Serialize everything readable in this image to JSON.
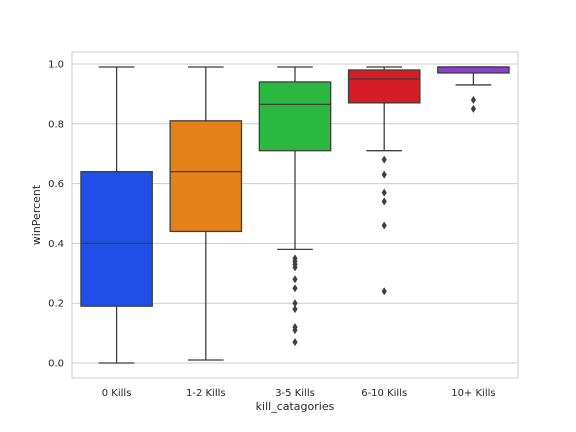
{
  "chart_data": {
    "type": "box",
    "xlabel": "kill_catagories",
    "ylabel": "winPercent",
    "ylim": [
      -0.05,
      1.04
    ],
    "yticks": [
      0.0,
      0.2,
      0.4,
      0.6,
      0.8,
      1.0
    ],
    "ytick_labels": [
      "0.0",
      "0.2",
      "0.4",
      "0.6",
      "0.8",
      "1.0"
    ],
    "grid": "horizontal",
    "categories": [
      "0 Kills",
      "1-2 Kills",
      "3-5 Kills",
      "6-10 Kills",
      "10+ Kills"
    ],
    "boxes": [
      {
        "category": "0 Kills",
        "color": "#1f4fe6",
        "whisker_low": 0.0,
        "q1": 0.19,
        "median": 0.4,
        "q3": 0.64,
        "whisker_high": 0.99,
        "outliers": []
      },
      {
        "category": "1-2 Kills",
        "color": "#e58119",
        "whisker_low": 0.01,
        "q1": 0.44,
        "median": 0.64,
        "q3": 0.81,
        "whisker_high": 0.99,
        "outliers": []
      },
      {
        "category": "3-5 Kills",
        "color": "#2ab840",
        "whisker_low": 0.38,
        "q1": 0.71,
        "median": 0.865,
        "q3": 0.94,
        "whisker_high": 0.99,
        "outliers": [
          0.35,
          0.34,
          0.33,
          0.32,
          0.28,
          0.25,
          0.2,
          0.18,
          0.12,
          0.11,
          0.07
        ]
      },
      {
        "category": "6-10 Kills",
        "color": "#d61c24",
        "whisker_low": 0.71,
        "q1": 0.87,
        "median": 0.95,
        "q3": 0.98,
        "whisker_high": 0.99,
        "outliers": [
          0.68,
          0.63,
          0.57,
          0.54,
          0.46,
          0.24
        ]
      },
      {
        "category": "10+ Kills",
        "color": "#8a3fd1",
        "whisker_low": 0.93,
        "q1": 0.97,
        "median": 0.99,
        "q3": 0.99,
        "whisker_high": 0.99,
        "outliers": [
          0.88,
          0.85
        ]
      }
    ]
  }
}
